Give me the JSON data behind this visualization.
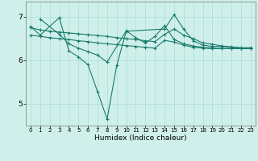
{
  "title": "",
  "xlabel": "Humidex (Indice chaleur)",
  "bg_color": "#cff0ea",
  "line_color": "#1a7a6e",
  "grid_color": "#aaddd6",
  "xlim": [
    -0.5,
    23.5
  ],
  "ylim": [
    4.5,
    7.35
  ],
  "yticks": [
    5,
    6,
    7
  ],
  "xticks": [
    0,
    1,
    2,
    3,
    4,
    5,
    6,
    7,
    8,
    9,
    10,
    11,
    12,
    13,
    14,
    15,
    16,
    17,
    18,
    19,
    20,
    21,
    22,
    23
  ],
  "lines": [
    {
      "x": [
        0,
        1,
        3,
        4,
        5,
        6,
        7,
        8,
        9,
        10,
        14,
        15,
        16,
        17,
        18,
        19,
        20,
        21,
        22,
        23
      ],
      "y": [
        6.78,
        6.58,
        6.98,
        6.22,
        6.08,
        5.9,
        5.28,
        4.65,
        5.88,
        6.67,
        6.72,
        7.05,
        6.72,
        6.45,
        6.35,
        6.32,
        6.32,
        6.3,
        6.28,
        6.28
      ]
    },
    {
      "x": [
        1,
        3,
        4,
        5,
        6,
        7,
        8,
        10,
        11,
        12,
        13,
        14,
        15,
        16,
        17,
        18,
        19,
        20,
        21,
        22,
        23
      ],
      "y": [
        6.95,
        6.6,
        6.38,
        6.28,
        6.2,
        6.12,
        5.96,
        6.68,
        6.52,
        6.4,
        6.55,
        6.8,
        6.48,
        6.38,
        6.33,
        6.3,
        6.28,
        6.27,
        6.27,
        6.27,
        6.27
      ]
    },
    {
      "x": [
        0,
        1,
        2,
        3,
        4,
        5,
        6,
        7,
        8,
        9,
        10,
        11,
        12,
        13,
        14,
        15,
        16,
        17,
        18,
        19,
        20,
        21,
        22,
        23
      ],
      "y": [
        6.75,
        6.7,
        6.67,
        6.65,
        6.63,
        6.61,
        6.59,
        6.57,
        6.55,
        6.52,
        6.5,
        6.48,
        6.45,
        6.43,
        6.6,
        6.72,
        6.58,
        6.5,
        6.4,
        6.37,
        6.33,
        6.31,
        6.29,
        6.29
      ]
    },
    {
      "x": [
        0,
        1,
        2,
        3,
        4,
        5,
        6,
        7,
        8,
        9,
        10,
        11,
        12,
        13,
        14,
        15,
        16,
        17,
        18,
        19,
        20,
        21,
        22,
        23
      ],
      "y": [
        6.58,
        6.55,
        6.52,
        6.5,
        6.48,
        6.45,
        6.43,
        6.4,
        6.38,
        6.36,
        6.34,
        6.32,
        6.3,
        6.28,
        6.46,
        6.42,
        6.35,
        6.3,
        6.28,
        6.27,
        6.27,
        6.27,
        6.27,
        6.27
      ]
    }
  ]
}
